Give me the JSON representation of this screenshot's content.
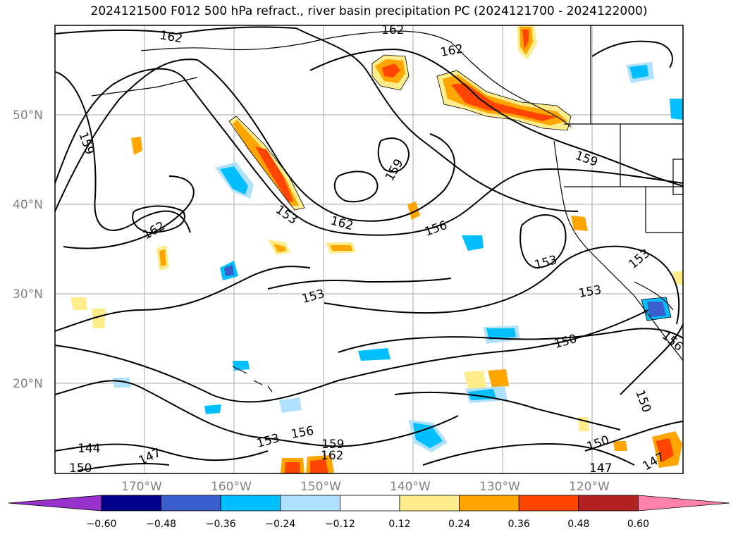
{
  "title": "2024121500 F012 500 hPa refract., river basin precipitation PC (2024121700 - 2024122000)",
  "map": {
    "lat_labels": [
      "50°N",
      "40°N",
      "30°N",
      "20°N"
    ],
    "lon_labels": [
      "170°W",
      "160°W",
      "150°W",
      "140°W",
      "130°W",
      "120°W"
    ],
    "contour_labels": [
      "162",
      "162",
      "162",
      "159",
      "159",
      "159",
      "153",
      "162",
      "156",
      "162",
      "153",
      "153",
      "153",
      "150",
      "150",
      "156",
      "150",
      "147",
      "144",
      "153",
      "156",
      "159",
      "162",
      "150",
      "147",
      "147",
      "153"
    ],
    "colors": {
      "contour": "#000000",
      "grid": "#a0a0a0",
      "coast": "#000000"
    }
  },
  "colorbar": {
    "ticks": [
      "−0.60",
      "−0.48",
      "−0.36",
      "−0.24",
      "−0.12",
      "0.12",
      "0.24",
      "0.36",
      "0.48",
      "0.60"
    ],
    "colors": [
      "#9932cc",
      "#00008b",
      "#3a5fcd",
      "#00bfff",
      "#b0e2ff",
      "#ffffff",
      "#ffec8b",
      "#ffa500",
      "#ff4500",
      "#b22222",
      "#ff82ab"
    ]
  }
}
